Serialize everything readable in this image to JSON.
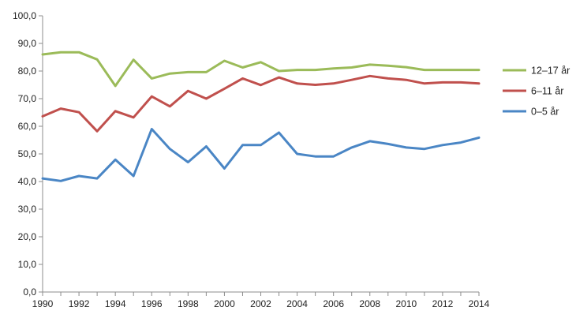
{
  "chart_data": {
    "type": "line",
    "x": [
      1990,
      1991,
      1992,
      1993,
      1994,
      1995,
      1996,
      1997,
      1998,
      1999,
      2000,
      2001,
      2002,
      2003,
      2004,
      2005,
      2006,
      2007,
      2008,
      2009,
      2010,
      2011,
      2012,
      2013,
      2014
    ],
    "x_tick_labels": [
      "1990",
      "1992",
      "1994",
      "1996",
      "1998",
      "2000",
      "2002",
      "2004",
      "2006",
      "2008",
      "2010",
      "2012",
      "2014"
    ],
    "y_tick_labels": [
      "0,0",
      "10,0",
      "20,0",
      "30,0",
      "40,0",
      "50,0",
      "60,0",
      "70,0",
      "80,0",
      "90,0",
      "100,0"
    ],
    "xlim": [
      1990,
      2014
    ],
    "ylim": [
      0,
      100
    ],
    "grid": "none",
    "legend_position": "right",
    "series": [
      {
        "name": "12–17 år",
        "color": "#9bbb59",
        "values": [
          86.0,
          86.8,
          86.8,
          84.2,
          74.6,
          84.1,
          77.3,
          79.1,
          79.6,
          79.6,
          83.7,
          81.3,
          83.2,
          80.0,
          80.4,
          80.4,
          80.9,
          81.3,
          82.3,
          81.9,
          81.4,
          80.4,
          80.4,
          80.4,
          80.4
        ]
      },
      {
        "name": "6–11 år",
        "color": "#c0504d",
        "values": [
          63.6,
          66.4,
          65.1,
          58.2,
          65.5,
          63.2,
          70.8,
          67.2,
          72.8,
          70.0,
          73.6,
          77.3,
          74.9,
          77.7,
          75.5,
          75.0,
          75.5,
          76.8,
          78.2,
          77.3,
          76.8,
          75.5,
          75.9,
          75.9,
          75.5
        ]
      },
      {
        "name": "0–5 år",
        "color": "#4a86c5",
        "values": [
          41.1,
          40.2,
          42.0,
          41.1,
          47.9,
          42.0,
          59.0,
          51.8,
          47.0,
          52.7,
          44.7,
          53.2,
          53.2,
          57.7,
          50.0,
          49.1,
          49.1,
          52.3,
          54.6,
          53.6,
          52.3,
          51.8,
          53.2,
          54.1,
          55.9
        ]
      }
    ]
  }
}
